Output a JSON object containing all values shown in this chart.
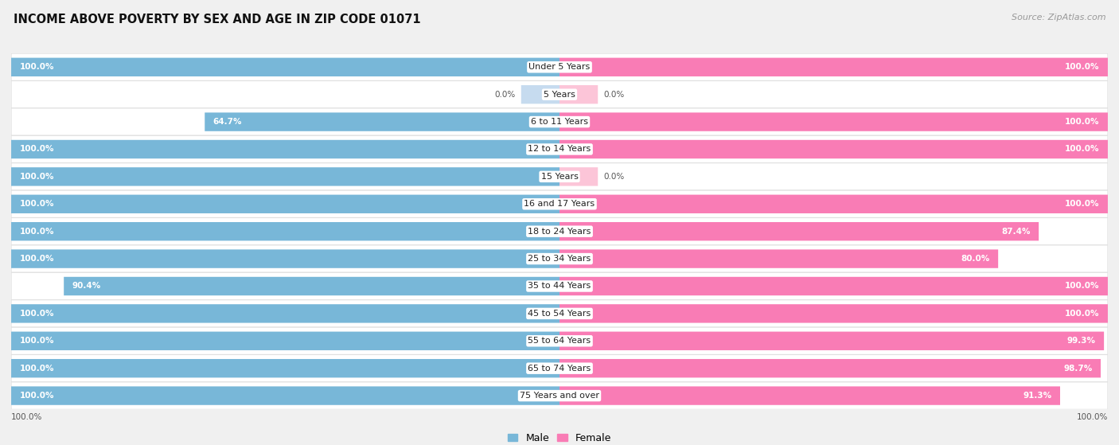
{
  "title": "INCOME ABOVE POVERTY BY SEX AND AGE IN ZIP CODE 01071",
  "source": "Source: ZipAtlas.com",
  "categories": [
    "Under 5 Years",
    "5 Years",
    "6 to 11 Years",
    "12 to 14 Years",
    "15 Years",
    "16 and 17 Years",
    "18 to 24 Years",
    "25 to 34 Years",
    "35 to 44 Years",
    "45 to 54 Years",
    "55 to 64 Years",
    "65 to 74 Years",
    "75 Years and over"
  ],
  "male_values": [
    100.0,
    0.0,
    64.7,
    100.0,
    100.0,
    100.0,
    100.0,
    100.0,
    90.4,
    100.0,
    100.0,
    100.0,
    100.0
  ],
  "female_values": [
    100.0,
    0.0,
    100.0,
    100.0,
    0.0,
    100.0,
    87.4,
    80.0,
    100.0,
    100.0,
    99.3,
    98.7,
    91.3
  ],
  "male_color": "#78b7d8",
  "female_color": "#f97cb5",
  "male_color_light": "#c6dbef",
  "female_color_light": "#fcc5d8",
  "row_bg_color": "#ffffff",
  "row_border_color": "#e0e0e0",
  "outer_bg_color": "#f0f0f0",
  "title_fontsize": 10.5,
  "label_fontsize": 8.0,
  "value_fontsize": 7.5,
  "legend_fontsize": 9,
  "source_fontsize": 8,
  "axis_label_fontsize": 7.5
}
